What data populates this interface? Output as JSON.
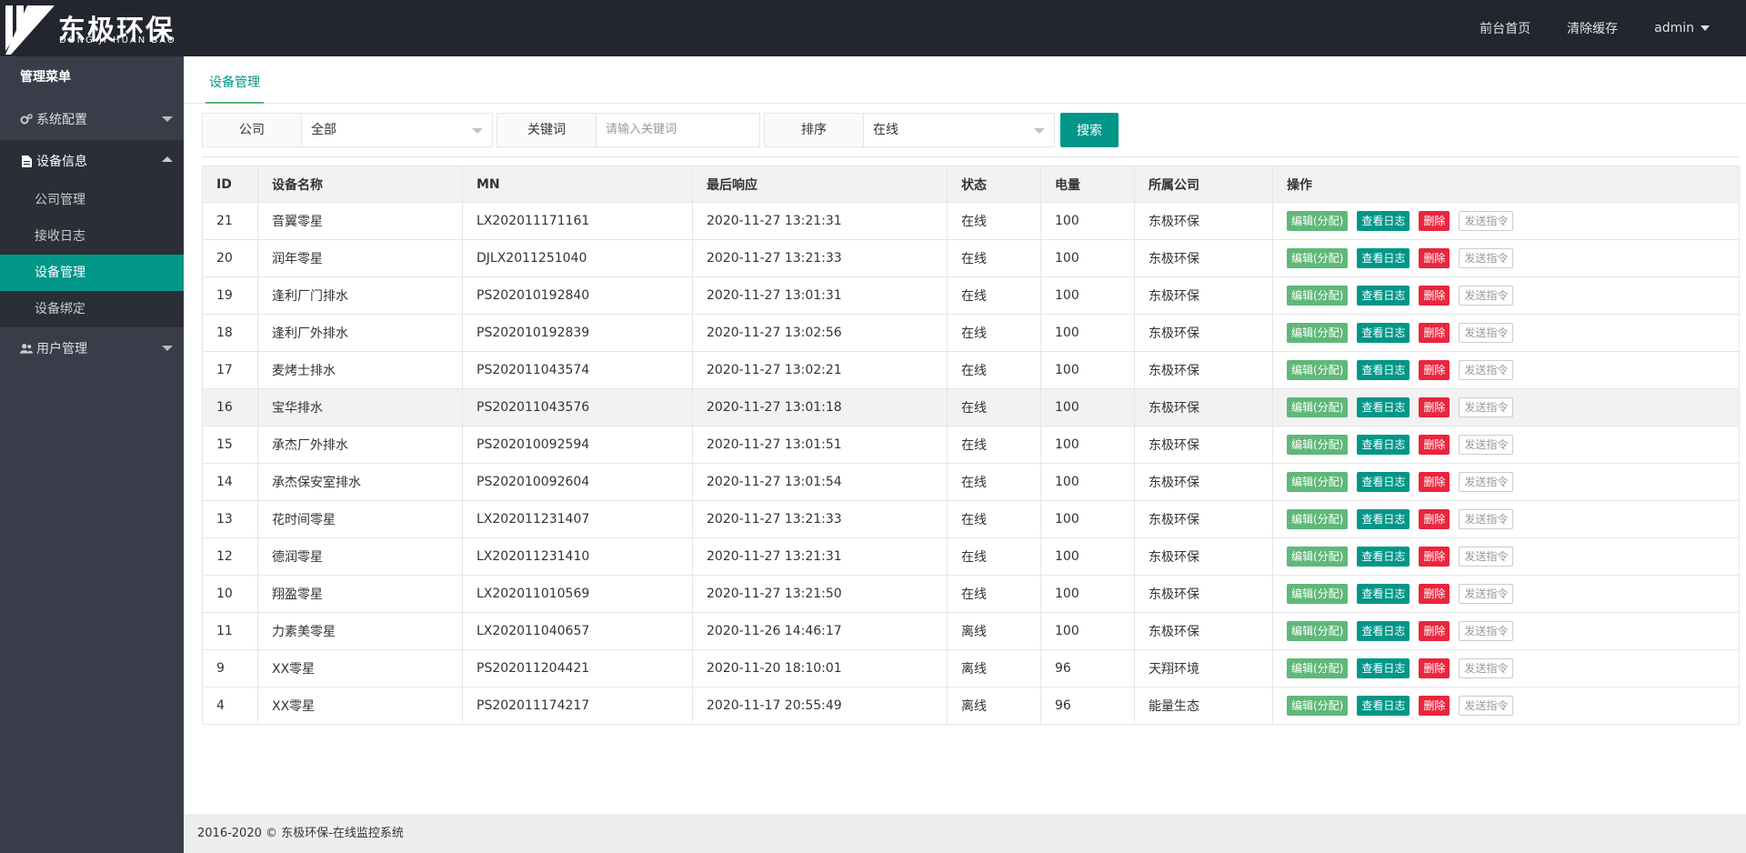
{
  "header": {
    "logo_cn": "东极环保",
    "logo_en": "DONG JI HUAN BAO",
    "nav": [
      "前台首页",
      "清除缓存"
    ],
    "user": "admin"
  },
  "sidebar": {
    "title": "管理菜单",
    "groups": [
      {
        "label": "系统配置",
        "icon": "gears-icon"
      },
      {
        "label": "设备信息",
        "icon": "file-icon"
      },
      {
        "label": "用户管理",
        "icon": "users-icon"
      }
    ],
    "sub_items": [
      "公司管理",
      "接收日志",
      "设备管理",
      "设备绑定"
    ]
  },
  "tab": {
    "label": "设备管理"
  },
  "filter": {
    "company_label": "公司",
    "company_value": "全部",
    "keyword_label": "关键词",
    "keyword_placeholder": "请输入关键词",
    "sort_label": "排序",
    "sort_value": "在线",
    "search_label": "搜索"
  },
  "table": {
    "headers": [
      "ID",
      "设备名称",
      "MN",
      "最后响应",
      "状态",
      "电量",
      "所属公司",
      "操作"
    ],
    "actions": {
      "edit": "编辑(分配)",
      "log": "查看日志",
      "delete": "删除",
      "send": "发送指令"
    },
    "rows": [
      [
        "21",
        "音翼零星",
        "LX202011171161",
        "2020-11-27 13:21:31",
        "在线",
        "100",
        "东极环保"
      ],
      [
        "20",
        "润年零星",
        "DJLX2011251040",
        "2020-11-27 13:21:33",
        "在线",
        "100",
        "东极环保"
      ],
      [
        "19",
        "逢利厂门排水",
        "PS202010192840",
        "2020-11-27 13:01:31",
        "在线",
        "100",
        "东极环保"
      ],
      [
        "18",
        "逢利厂外排水",
        "PS202010192839",
        "2020-11-27 13:02:56",
        "在线",
        "100",
        "东极环保"
      ],
      [
        "17",
        "麦烤士排水",
        "PS202011043574",
        "2020-11-27 13:02:21",
        "在线",
        "100",
        "东极环保"
      ],
      [
        "16",
        "宝华排水",
        "PS202011043576",
        "2020-11-27 13:01:18",
        "在线",
        "100",
        "东极环保"
      ],
      [
        "15",
        "承杰厂外排水",
        "PS202010092594",
        "2020-11-27 13:01:51",
        "在线",
        "100",
        "东极环保"
      ],
      [
        "14",
        "承杰保安室排水",
        "PS202010092604",
        "2020-11-27 13:01:54",
        "在线",
        "100",
        "东极环保"
      ],
      [
        "13",
        "花时间零星",
        "LX202011231407",
        "2020-11-27 13:21:33",
        "在线",
        "100",
        "东极环保"
      ],
      [
        "12",
        "德润零星",
        "LX202011231410",
        "2020-11-27 13:21:31",
        "在线",
        "100",
        "东极环保"
      ],
      [
        "10",
        "翔盈零星",
        "LX202011010569",
        "2020-11-27 13:21:50",
        "在线",
        "100",
        "东极环保"
      ],
      [
        "11",
        "力素美零星",
        "LX202011040657",
        "2020-11-26 14:46:17",
        "离线",
        "100",
        "东极环保"
      ],
      [
        "9",
        "XX零星",
        "PS202011204421",
        "2020-11-20 18:10:01",
        "离线",
        "96",
        "天翔环境"
      ],
      [
        "4",
        "XX零星",
        "PS202011174217",
        "2020-11-17 20:55:49",
        "离线",
        "96",
        "能量生态"
      ]
    ]
  },
  "footer": {
    "text": "2016-2020 © 东极环保-在线监控系统"
  }
}
